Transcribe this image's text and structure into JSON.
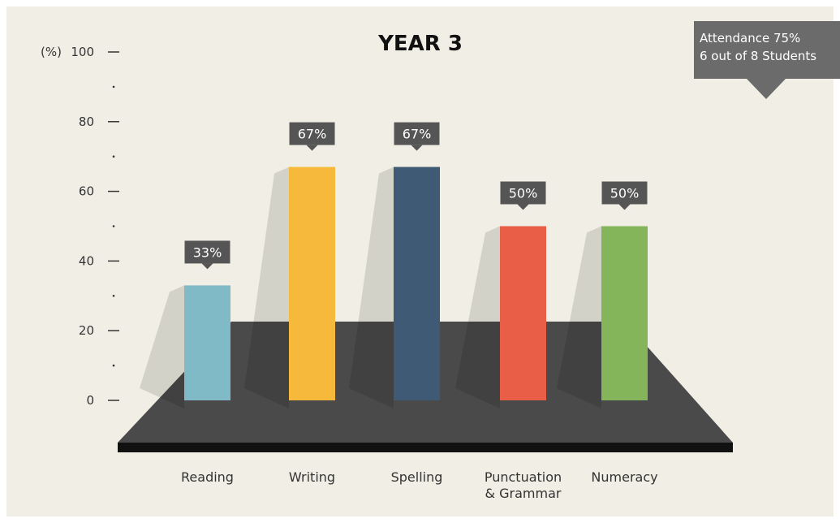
{
  "chart_data": {
    "type": "bar",
    "title": "YEAR 3",
    "ylabel": "(%)",
    "categories": [
      "Reading",
      "Writing",
      "Spelling",
      "Punctuation\n& Grammar",
      "Numeracy"
    ],
    "values": [
      33,
      67,
      67,
      50,
      50
    ],
    "value_labels": [
      "33%",
      "67%",
      "67%",
      "50%",
      "50%"
    ],
    "colors": [
      "#80bac6",
      "#f6b93c",
      "#3e5a74",
      "#e95e46",
      "#85b55b"
    ],
    "ylim": [
      0,
      100
    ],
    "yticks": [
      0,
      20,
      40,
      60,
      80,
      100
    ],
    "annotation": [
      "Attendance 75%",
      "6 out of 8 Students"
    ]
  }
}
